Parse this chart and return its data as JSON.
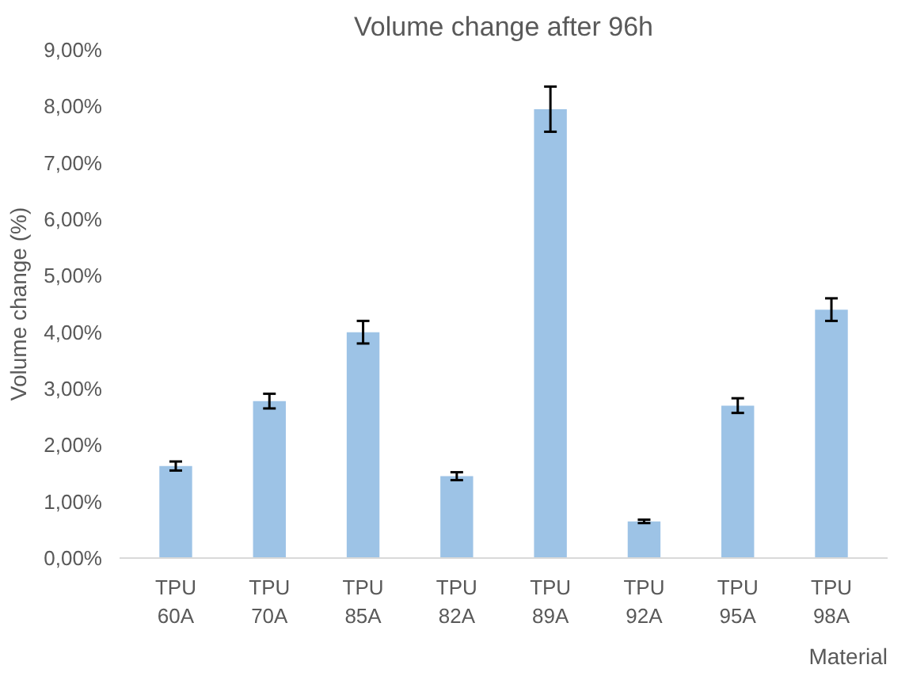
{
  "chart_data": {
    "type": "bar",
    "title": "Volume change after 96h",
    "xlabel": "Material",
    "ylabel": "Volume change (%)",
    "categories": [
      "TPU 60A",
      "TPU 70A",
      "TPU 85A",
      "TPU 82A",
      "TPU 89A",
      "TPU 92A",
      "TPU 95A",
      "TPU 98A"
    ],
    "values": [
      1.63,
      2.78,
      4.0,
      1.45,
      7.95,
      0.65,
      2.7,
      4.4
    ],
    "errors": [
      0.08,
      0.13,
      0.2,
      0.07,
      0.4,
      0.03,
      0.13,
      0.2
    ],
    "color": "#9dc3e6",
    "ylim": [
      0,
      9
    ],
    "yticks": [
      {
        "value": 0,
        "label": "0,00%"
      },
      {
        "value": 1,
        "label": "1,00%"
      },
      {
        "value": 2,
        "label": "2,00%"
      },
      {
        "value": 3,
        "label": "3,00%"
      },
      {
        "value": 4,
        "label": "4,00%"
      },
      {
        "value": 5,
        "label": "5,00%"
      },
      {
        "value": 6,
        "label": "6,00%"
      },
      {
        "value": 7,
        "label": "7,00%"
      },
      {
        "value": 8,
        "label": "8,00%"
      },
      {
        "value": 9,
        "label": "9,00%"
      }
    ],
    "grid": false
  }
}
